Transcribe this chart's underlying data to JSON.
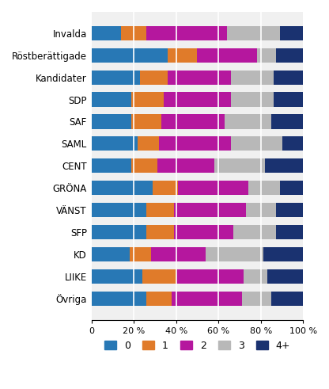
{
  "categories": [
    "Invalda",
    "Röstberättigade",
    "Kandidater",
    "SDP",
    "SAF",
    "SAML",
    "CENT",
    "GRÖNA",
    "VÄNST",
    "SFP",
    "KD",
    "LIIKE",
    "Övriga"
  ],
  "series": {
    "0": [
      14,
      36,
      23,
      19,
      19,
      22,
      19,
      29,
      26,
      26,
      18,
      24,
      26
    ],
    "1": [
      12,
      14,
      13,
      15,
      14,
      10,
      12,
      12,
      13,
      13,
      10,
      16,
      12
    ],
    "2": [
      38,
      28,
      30,
      32,
      30,
      34,
      27,
      33,
      34,
      28,
      26,
      32,
      33
    ],
    "3": [
      25,
      9,
      20,
      20,
      22,
      24,
      24,
      15,
      14,
      20,
      27,
      11,
      14
    ],
    "4+": [
      11,
      13,
      14,
      14,
      15,
      10,
      18,
      11,
      13,
      13,
      19,
      17,
      15
    ]
  },
  "colors": {
    "0": "#2878b5",
    "1": "#e07b2a",
    "2": "#b5179e",
    "3": "#b8b8b8",
    "4+": "#1a3270"
  },
  "legend_labels": [
    "0",
    "1",
    "2",
    "3",
    "4+"
  ],
  "xlim": [
    0,
    100
  ],
  "xticks": [
    0,
    20,
    40,
    60,
    80,
    100
  ],
  "xticklabels": [
    "0",
    "20 %",
    "40 %",
    "60 %",
    "80 %",
    "100 %"
  ],
  "bar_height": 0.65,
  "figsize": [
    4.16,
    4.91
  ],
  "dpi": 100
}
